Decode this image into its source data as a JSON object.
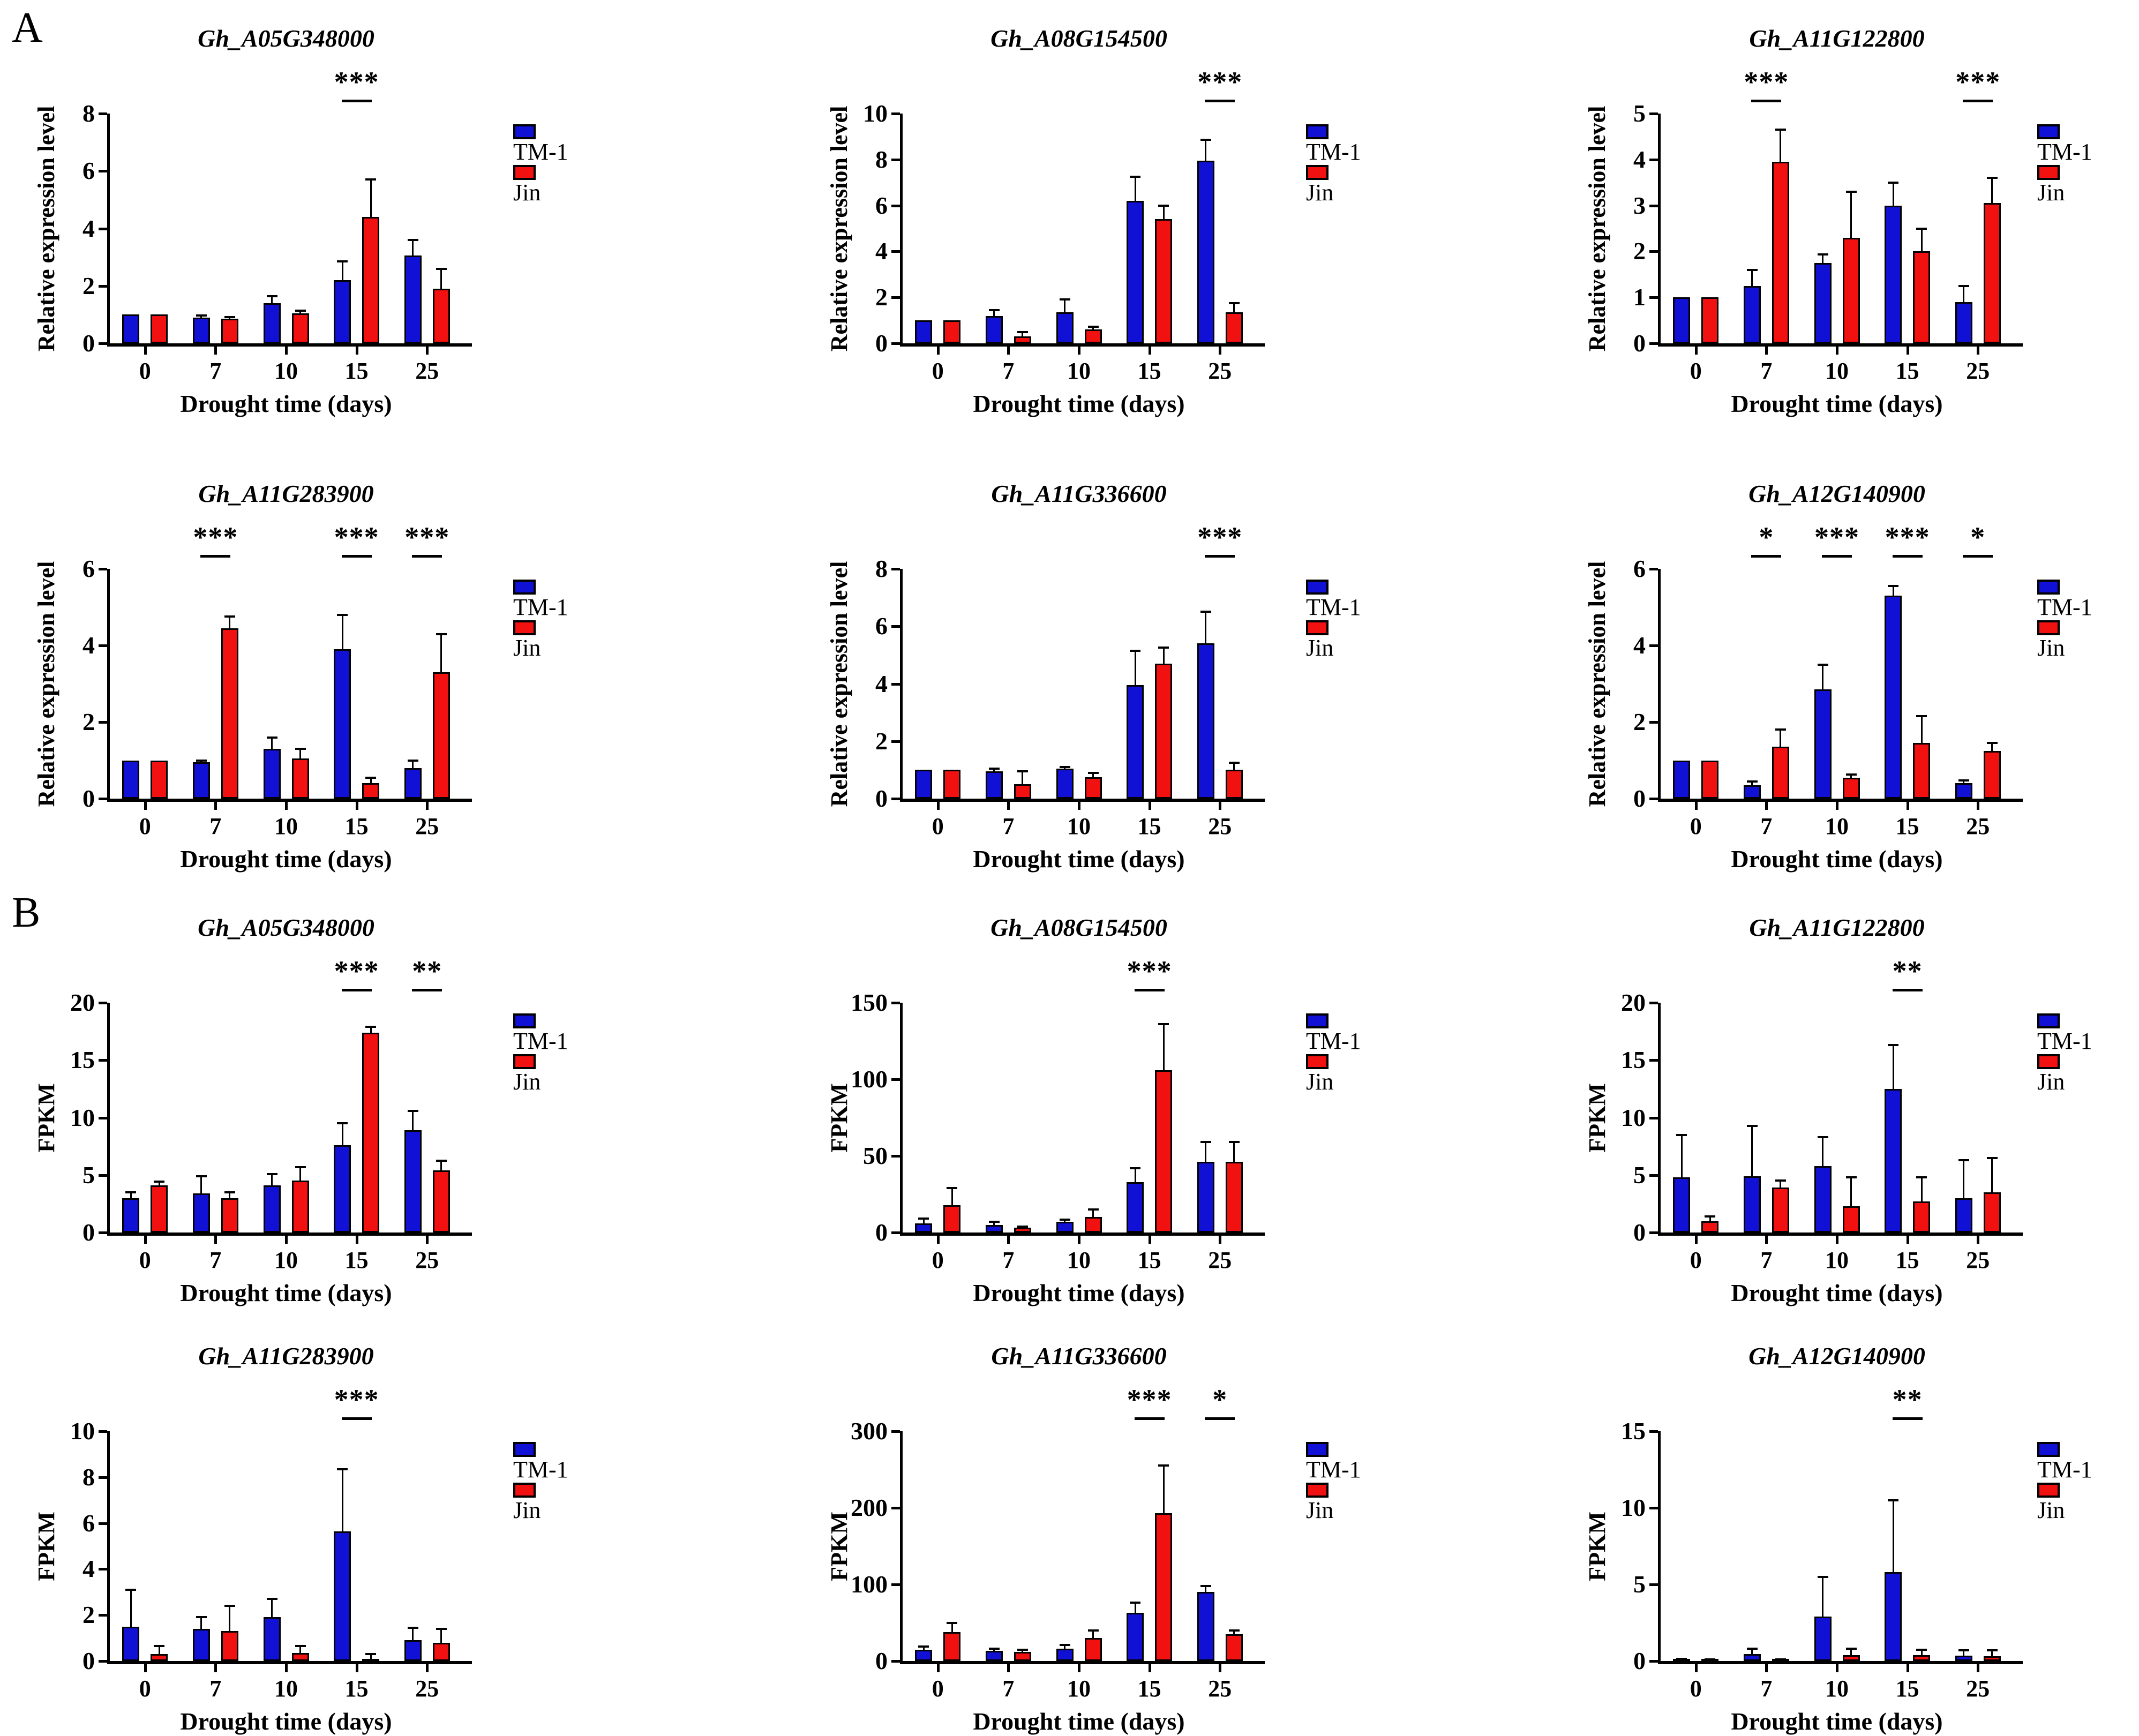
{
  "figure": {
    "panel_a_label": "A",
    "panel_b_label": "B"
  },
  "colors": {
    "tm1": "#1111D6",
    "jin": "#F21111",
    "axis": "#000000"
  },
  "chart_data": [
    {
      "type": "bar",
      "panel": "A",
      "title": "Gh_A05G348000",
      "ylabel": "Relative expression level",
      "xlabel": "Drought time (days)",
      "categories": [
        "0",
        "7",
        "10",
        "15",
        "25"
      ],
      "ylim": [
        0,
        8
      ],
      "yticks": [
        0,
        2,
        4,
        6,
        8
      ],
      "legend_position": "right",
      "series": [
        {
          "name": "TM-1",
          "values": [
            1.0,
            0.9,
            1.4,
            2.2,
            3.05
          ],
          "errors": [
            0,
            0.07,
            0.25,
            0.65,
            0.55
          ]
        },
        {
          "name": "Jin",
          "values": [
            1.0,
            0.85,
            1.05,
            4.4,
            1.9
          ],
          "errors": [
            0,
            0.07,
            0.08,
            1.3,
            0.7
          ]
        }
      ],
      "significance": [
        {
          "at": "15",
          "label": "***"
        }
      ]
    },
    {
      "type": "bar",
      "panel": "A",
      "title": "Gh_A08G154500",
      "ylabel": "Relative expression level",
      "xlabel": "Drought time (days)",
      "categories": [
        "0",
        "7",
        "10",
        "15",
        "25"
      ],
      "ylim": [
        0,
        10
      ],
      "yticks": [
        0,
        2,
        4,
        6,
        8,
        10
      ],
      "legend_position": "right",
      "series": [
        {
          "name": "TM-1",
          "values": [
            1.0,
            1.2,
            1.35,
            6.2,
            7.95
          ],
          "errors": [
            0,
            0.25,
            0.55,
            1.05,
            0.9
          ]
        },
        {
          "name": "Jin",
          "values": [
            1.0,
            0.3,
            0.6,
            5.4,
            1.35
          ],
          "errors": [
            0,
            0.2,
            0.12,
            0.6,
            0.4
          ]
        }
      ],
      "significance": [
        {
          "at": "25",
          "label": "***"
        }
      ]
    },
    {
      "type": "bar",
      "panel": "A",
      "title": "Gh_A11G122800",
      "ylabel": "Relative expression level",
      "xlabel": "Drought time (days)",
      "categories": [
        "0",
        "7",
        "10",
        "15",
        "25"
      ],
      "ylim": [
        0,
        5
      ],
      "yticks": [
        0,
        1,
        2,
        3,
        4,
        5
      ],
      "legend_position": "right",
      "series": [
        {
          "name": "TM-1",
          "values": [
            1.0,
            1.25,
            1.75,
            3.0,
            0.9
          ],
          "errors": [
            0,
            0.35,
            0.18,
            0.5,
            0.35
          ]
        },
        {
          "name": "Jin",
          "values": [
            1.0,
            3.95,
            2.3,
            2.0,
            3.05
          ],
          "errors": [
            0,
            0.7,
            1.0,
            0.5,
            0.55
          ]
        }
      ],
      "significance": [
        {
          "at": "7",
          "label": "***"
        },
        {
          "at": "25",
          "label": "***"
        }
      ]
    },
    {
      "type": "bar",
      "panel": "A",
      "title": "Gh_A11G283900",
      "ylabel": "Relative expression level",
      "xlabel": "Drought time (days)",
      "categories": [
        "0",
        "7",
        "10",
        "15",
        "25"
      ],
      "ylim": [
        0,
        6
      ],
      "yticks": [
        0,
        2,
        4,
        6
      ],
      "legend_position": "right",
      "series": [
        {
          "name": "TM-1",
          "values": [
            1.0,
            0.95,
            1.3,
            3.9,
            0.8
          ],
          "errors": [
            0,
            0.04,
            0.3,
            0.9,
            0.2
          ]
        },
        {
          "name": "Jin",
          "values": [
            1.0,
            4.45,
            1.05,
            0.4,
            3.3
          ],
          "errors": [
            0,
            0.3,
            0.25,
            0.15,
            1.0
          ]
        }
      ],
      "significance": [
        {
          "at": "7",
          "label": "***"
        },
        {
          "at": "15",
          "label": "***"
        },
        {
          "at": "25",
          "label": "***"
        }
      ]
    },
    {
      "type": "bar",
      "panel": "A",
      "title": "Gh_A11G336600",
      "ylabel": "Relative expression level",
      "xlabel": "Drought time (days)",
      "categories": [
        "0",
        "7",
        "10",
        "15",
        "25"
      ],
      "ylim": [
        0,
        8
      ],
      "yticks": [
        0,
        2,
        4,
        6,
        8
      ],
      "legend_position": "right",
      "series": [
        {
          "name": "TM-1",
          "values": [
            1.0,
            0.95,
            1.05,
            3.95,
            5.4
          ],
          "errors": [
            0,
            0.1,
            0.05,
            1.2,
            1.1
          ]
        },
        {
          "name": "Jin",
          "values": [
            1.0,
            0.5,
            0.75,
            4.7,
            1.0
          ],
          "errors": [
            0,
            0.45,
            0.15,
            0.55,
            0.25
          ]
        }
      ],
      "significance": [
        {
          "at": "25",
          "label": "***"
        }
      ]
    },
    {
      "type": "bar",
      "panel": "A",
      "title": "Gh_A12G140900",
      "ylabel": "Relative expression level",
      "xlabel": "Drought time (days)",
      "categories": [
        "0",
        "7",
        "10",
        "15",
        "25"
      ],
      "ylim": [
        0,
        6
      ],
      "yticks": [
        0,
        2,
        4,
        6
      ],
      "legend_position": "right",
      "series": [
        {
          "name": "TM-1",
          "values": [
            1.0,
            0.35,
            2.85,
            5.3,
            0.4
          ],
          "errors": [
            0,
            0.1,
            0.65,
            0.25,
            0.08
          ]
        },
        {
          "name": "Jin",
          "values": [
            1.0,
            1.35,
            0.55,
            1.45,
            1.25
          ],
          "errors": [
            0,
            0.45,
            0.08,
            0.7,
            0.2
          ]
        }
      ],
      "significance": [
        {
          "at": "7",
          "label": "*"
        },
        {
          "at": "10",
          "label": "***"
        },
        {
          "at": "15",
          "label": "***"
        },
        {
          "at": "25",
          "label": "*"
        }
      ]
    },
    {
      "type": "bar",
      "panel": "B",
      "title": "Gh_A05G348000",
      "ylabel": "FPKM",
      "xlabel": "Drought time (days)",
      "categories": [
        "0",
        "7",
        "10",
        "15",
        "25"
      ],
      "ylim": [
        0,
        20
      ],
      "yticks": [
        0,
        5,
        10,
        15,
        20
      ],
      "legend_position": "right",
      "series": [
        {
          "name": "TM-1",
          "values": [
            3.0,
            3.4,
            4.1,
            7.6,
            8.9
          ],
          "errors": [
            0.5,
            1.5,
            1.0,
            1.9,
            1.7
          ]
        },
        {
          "name": "Jin",
          "values": [
            4.1,
            3.0,
            4.5,
            17.4,
            5.4
          ],
          "errors": [
            0.35,
            0.5,
            1.2,
            0.5,
            0.85
          ]
        }
      ],
      "significance": [
        {
          "at": "15",
          "label": "***"
        },
        {
          "at": "25",
          "label": "**"
        }
      ]
    },
    {
      "type": "bar",
      "panel": "B",
      "title": "Gh_A08G154500",
      "ylabel": "FPKM",
      "xlabel": "Drought time (days)",
      "categories": [
        "0",
        "7",
        "10",
        "15",
        "25"
      ],
      "ylim": [
        0,
        150
      ],
      "yticks": [
        0,
        50,
        100,
        150
      ],
      "legend_position": "right",
      "series": [
        {
          "name": "TM-1",
          "values": [
            6,
            5,
            7,
            33,
            46
          ],
          "errors": [
            3,
            2,
            1.5,
            9,
            13
          ]
        },
        {
          "name": "Jin",
          "values": [
            18,
            3,
            10,
            106,
            46
          ],
          "errors": [
            11,
            1,
            5,
            30,
            13
          ]
        }
      ],
      "significance": [
        {
          "at": "15",
          "label": "***"
        }
      ]
    },
    {
      "type": "bar",
      "panel": "B",
      "title": "Gh_A11G122800",
      "ylabel": "FPKM",
      "xlabel": "Drought time (days)",
      "categories": [
        "0",
        "7",
        "10",
        "15",
        "25"
      ],
      "ylim": [
        0,
        20
      ],
      "yticks": [
        0,
        5,
        10,
        15,
        20
      ],
      "legend_position": "right",
      "series": [
        {
          "name": "TM-1",
          "values": [
            4.8,
            4.9,
            5.8,
            12.5,
            3.0
          ],
          "errors": [
            3.7,
            4.4,
            2.5,
            3.8,
            3.3
          ]
        },
        {
          "name": "Jin",
          "values": [
            1.0,
            3.9,
            2.3,
            2.7,
            3.5
          ],
          "errors": [
            0.4,
            0.6,
            2.5,
            2.1,
            3.0
          ]
        }
      ],
      "significance": [
        {
          "at": "15",
          "label": "**"
        }
      ]
    },
    {
      "type": "bar",
      "panel": "B",
      "title": "Gh_A11G283900",
      "ylabel": "FPKM",
      "xlabel": "Drought time (days)",
      "categories": [
        "0",
        "7",
        "10",
        "15",
        "25"
      ],
      "ylim": [
        0,
        10
      ],
      "yticks": [
        0,
        2,
        4,
        6,
        8,
        10
      ],
      "legend_position": "right",
      "series": [
        {
          "name": "TM-1",
          "values": [
            1.5,
            1.4,
            1.9,
            5.65,
            0.9
          ],
          "errors": [
            1.6,
            0.5,
            0.8,
            2.7,
            0.55
          ]
        },
        {
          "name": "Jin",
          "values": [
            0.3,
            1.3,
            0.35,
            0.1,
            0.8
          ],
          "errors": [
            0.35,
            1.1,
            0.3,
            0.2,
            0.6
          ]
        }
      ],
      "significance": [
        {
          "at": "15",
          "label": "***"
        }
      ]
    },
    {
      "type": "bar",
      "panel": "B",
      "title": "Gh_A11G336600",
      "ylabel": "FPKM",
      "xlabel": "Drought time (days)",
      "categories": [
        "0",
        "7",
        "10",
        "15",
        "25"
      ],
      "ylim": [
        0,
        300
      ],
      "yticks": [
        0,
        100,
        200,
        300
      ],
      "legend_position": "right",
      "series": [
        {
          "name": "TM-1",
          "values": [
            15,
            13,
            16,
            63,
            90
          ],
          "errors": [
            4,
            3,
            5,
            13,
            8
          ]
        },
        {
          "name": "Jin",
          "values": [
            38,
            12,
            30,
            193,
            35
          ],
          "errors": [
            12,
            3,
            10,
            62,
            5
          ]
        }
      ],
      "significance": [
        {
          "at": "15",
          "label": "***"
        },
        {
          "at": "25",
          "label": "*"
        }
      ]
    },
    {
      "type": "bar",
      "panel": "B",
      "title": "Gh_A12G140900",
      "ylabel": "FPKM",
      "xlabel": "Drought time (days)",
      "categories": [
        "0",
        "7",
        "10",
        "15",
        "25"
      ],
      "ylim": [
        0,
        15
      ],
      "yticks": [
        0,
        5,
        10,
        15
      ],
      "legend_position": "right",
      "series": [
        {
          "name": "TM-1",
          "values": [
            0.1,
            0.45,
            2.9,
            5.8,
            0.35
          ],
          "errors": [
            0.05,
            0.35,
            2.6,
            4.7,
            0.35
          ]
        },
        {
          "name": "Jin",
          "values": [
            0.08,
            0.08,
            0.4,
            0.4,
            0.3
          ],
          "errors": [
            0.04,
            0.04,
            0.4,
            0.35,
            0.4
          ]
        }
      ],
      "significance": [
        {
          "at": "15",
          "label": "**"
        }
      ]
    }
  ]
}
